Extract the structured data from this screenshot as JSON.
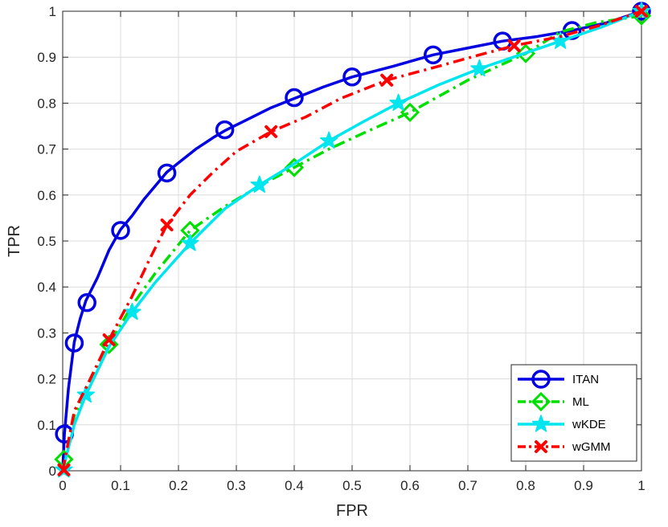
{
  "chart_data": {
    "type": "line",
    "title": "",
    "xlabel": "FPR",
    "ylabel": "TPR",
    "xlim": [
      0,
      1
    ],
    "ylim": [
      0,
      1
    ],
    "grid": true,
    "legend_position": "bottom-right",
    "xticks": [
      0,
      0.1,
      0.2,
      0.3,
      0.4,
      0.5,
      0.6,
      0.7,
      0.8,
      0.9,
      1
    ],
    "yticks": [
      0,
      0.1,
      0.2,
      0.3,
      0.4,
      0.5,
      0.6,
      0.7,
      0.8,
      0.9,
      1
    ],
    "xtick_labels": [
      "0",
      "0.1",
      "0.2",
      "0.3",
      "0.4",
      "0.5",
      "0.6",
      "0.7",
      "0.8",
      "0.9",
      "1"
    ],
    "ytick_labels": [
      "0",
      "0.1",
      "0.2",
      "0.3",
      "0.4",
      "0.5",
      "0.6",
      "0.7",
      "0.8",
      "0.9",
      "1"
    ],
    "series": [
      {
        "name": "ITAN",
        "color": "#0000e0",
        "dash": "solid",
        "marker": "circle",
        "x": [
          0,
          0.003,
          0.01,
          0.02,
          0.03,
          0.04,
          0.06,
          0.08,
          0.1,
          0.12,
          0.14,
          0.16,
          0.18,
          0.2,
          0.23,
          0.26,
          0.28,
          0.32,
          0.36,
          0.4,
          0.45,
          0.5,
          0.57,
          0.64,
          0.7,
          0.76,
          0.82,
          0.88,
          0.94,
          1
        ],
        "y": [
          0,
          0.08,
          0.18,
          0.28,
          0.33,
          0.37,
          0.42,
          0.48,
          0.525,
          0.555,
          0.59,
          0.62,
          0.65,
          0.67,
          0.7,
          0.725,
          0.74,
          0.765,
          0.79,
          0.81,
          0.835,
          0.857,
          0.88,
          0.905,
          0.92,
          0.935,
          0.945,
          0.958,
          0.975,
          1
        ],
        "marker_points": [
          [
            0.003,
            0.08
          ],
          [
            0.02,
            0.278
          ],
          [
            0.042,
            0.366
          ],
          [
            0.1,
            0.523
          ],
          [
            0.18,
            0.648
          ],
          [
            0.28,
            0.742
          ],
          [
            0.4,
            0.812
          ],
          [
            0.5,
            0.857
          ],
          [
            0.64,
            0.905
          ],
          [
            0.76,
            0.935
          ],
          [
            0.88,
            0.958
          ],
          [
            1,
            1
          ]
        ]
      },
      {
        "name": "ML",
        "color": "#00e000",
        "dash": "dashdot",
        "marker": "diamond",
        "x": [
          0,
          0.02,
          0.04,
          0.08,
          0.12,
          0.16,
          0.22,
          0.28,
          0.34,
          0.4,
          0.46,
          0.52,
          0.6,
          0.7,
          0.8,
          0.86,
          0.92,
          1
        ],
        "y": [
          0,
          0.12,
          0.17,
          0.275,
          0.36,
          0.43,
          0.523,
          0.575,
          0.62,
          0.66,
          0.7,
          0.735,
          0.78,
          0.85,
          0.908,
          0.955,
          0.975,
          0.99
        ],
        "marker_points": [
          [
            0.002,
            0.025
          ],
          [
            0.08,
            0.275
          ],
          [
            0.22,
            0.523
          ],
          [
            0.4,
            0.66
          ],
          [
            0.6,
            0.78
          ],
          [
            0.8,
            0.908
          ],
          [
            1,
            0.99
          ]
        ]
      },
      {
        "name": "wKDE",
        "color": "#00e5ee",
        "dash": "solid",
        "marker": "star",
        "x": [
          0,
          0.02,
          0.04,
          0.08,
          0.12,
          0.16,
          0.22,
          0.28,
          0.34,
          0.4,
          0.46,
          0.52,
          0.58,
          0.65,
          0.72,
          0.79,
          0.86,
          0.93,
          1
        ],
        "y": [
          0,
          0.1,
          0.165,
          0.27,
          0.345,
          0.41,
          0.495,
          0.57,
          0.622,
          0.668,
          0.718,
          0.76,
          0.8,
          0.84,
          0.875,
          0.905,
          0.935,
          0.965,
          1
        ],
        "marker_points": [
          [
            0.002,
            0.002
          ],
          [
            0.04,
            0.165
          ],
          [
            0.12,
            0.345
          ],
          [
            0.22,
            0.495
          ],
          [
            0.34,
            0.622
          ],
          [
            0.46,
            0.718
          ],
          [
            0.58,
            0.8
          ],
          [
            0.72,
            0.875
          ],
          [
            0.86,
            0.935
          ],
          [
            1,
            1
          ]
        ]
      },
      {
        "name": "wGMM",
        "color": "#ff0000",
        "dash": "dashdot",
        "marker": "x",
        "x": [
          0,
          0.02,
          0.04,
          0.08,
          0.12,
          0.15,
          0.18,
          0.22,
          0.26,
          0.3,
          0.36,
          0.42,
          0.48,
          0.56,
          0.64,
          0.72,
          0.78,
          0.86,
          0.93,
          1
        ],
        "y": [
          0,
          0.13,
          0.18,
          0.285,
          0.38,
          0.46,
          0.535,
          0.6,
          0.65,
          0.695,
          0.738,
          0.77,
          0.81,
          0.85,
          0.877,
          0.905,
          0.925,
          0.945,
          0.97,
          1
        ],
        "marker_points": [
          [
            0.002,
            0.002
          ],
          [
            0.08,
            0.285
          ],
          [
            0.18,
            0.535
          ],
          [
            0.36,
            0.738
          ],
          [
            0.56,
            0.85
          ],
          [
            0.78,
            0.925
          ],
          [
            1,
            1
          ]
        ]
      }
    ]
  }
}
